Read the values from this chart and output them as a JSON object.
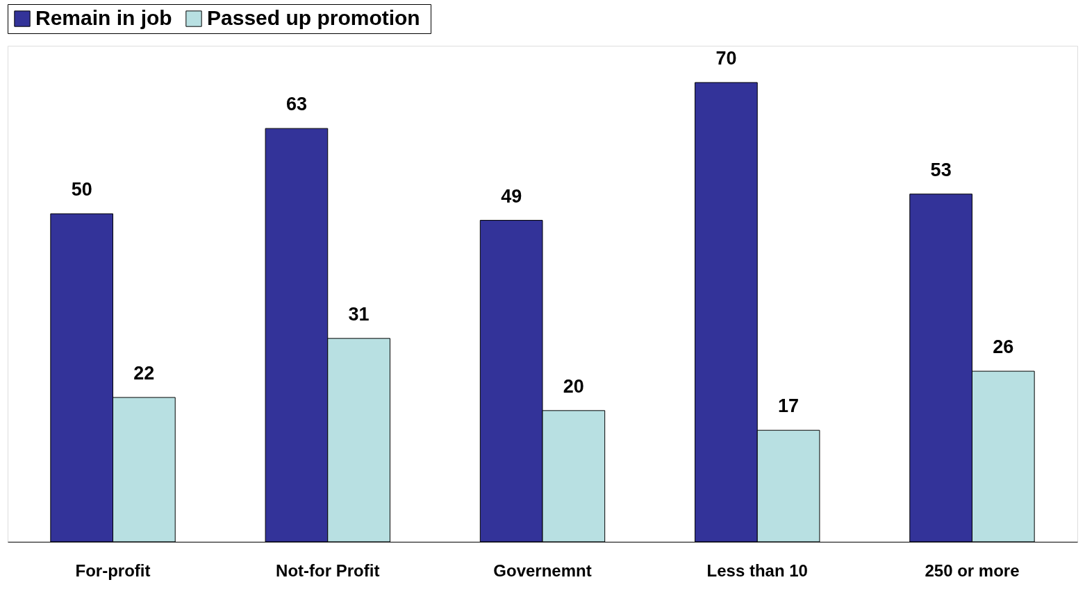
{
  "chart_data": {
    "type": "bar",
    "categories": [
      "For-profit",
      "Not-for Profit",
      "Governemnt",
      "Less than 10",
      "250 or more"
    ],
    "series": [
      {
        "name": "Remain in job",
        "color": "#333399",
        "values": [
          50,
          63,
          49,
          70,
          53
        ]
      },
      {
        "name": "Passed up  promotion",
        "color": "#b8e0e2",
        "values": [
          22,
          31,
          20,
          17,
          26
        ]
      }
    ],
    "data_labels": true,
    "legend": "top",
    "grid": false
  }
}
